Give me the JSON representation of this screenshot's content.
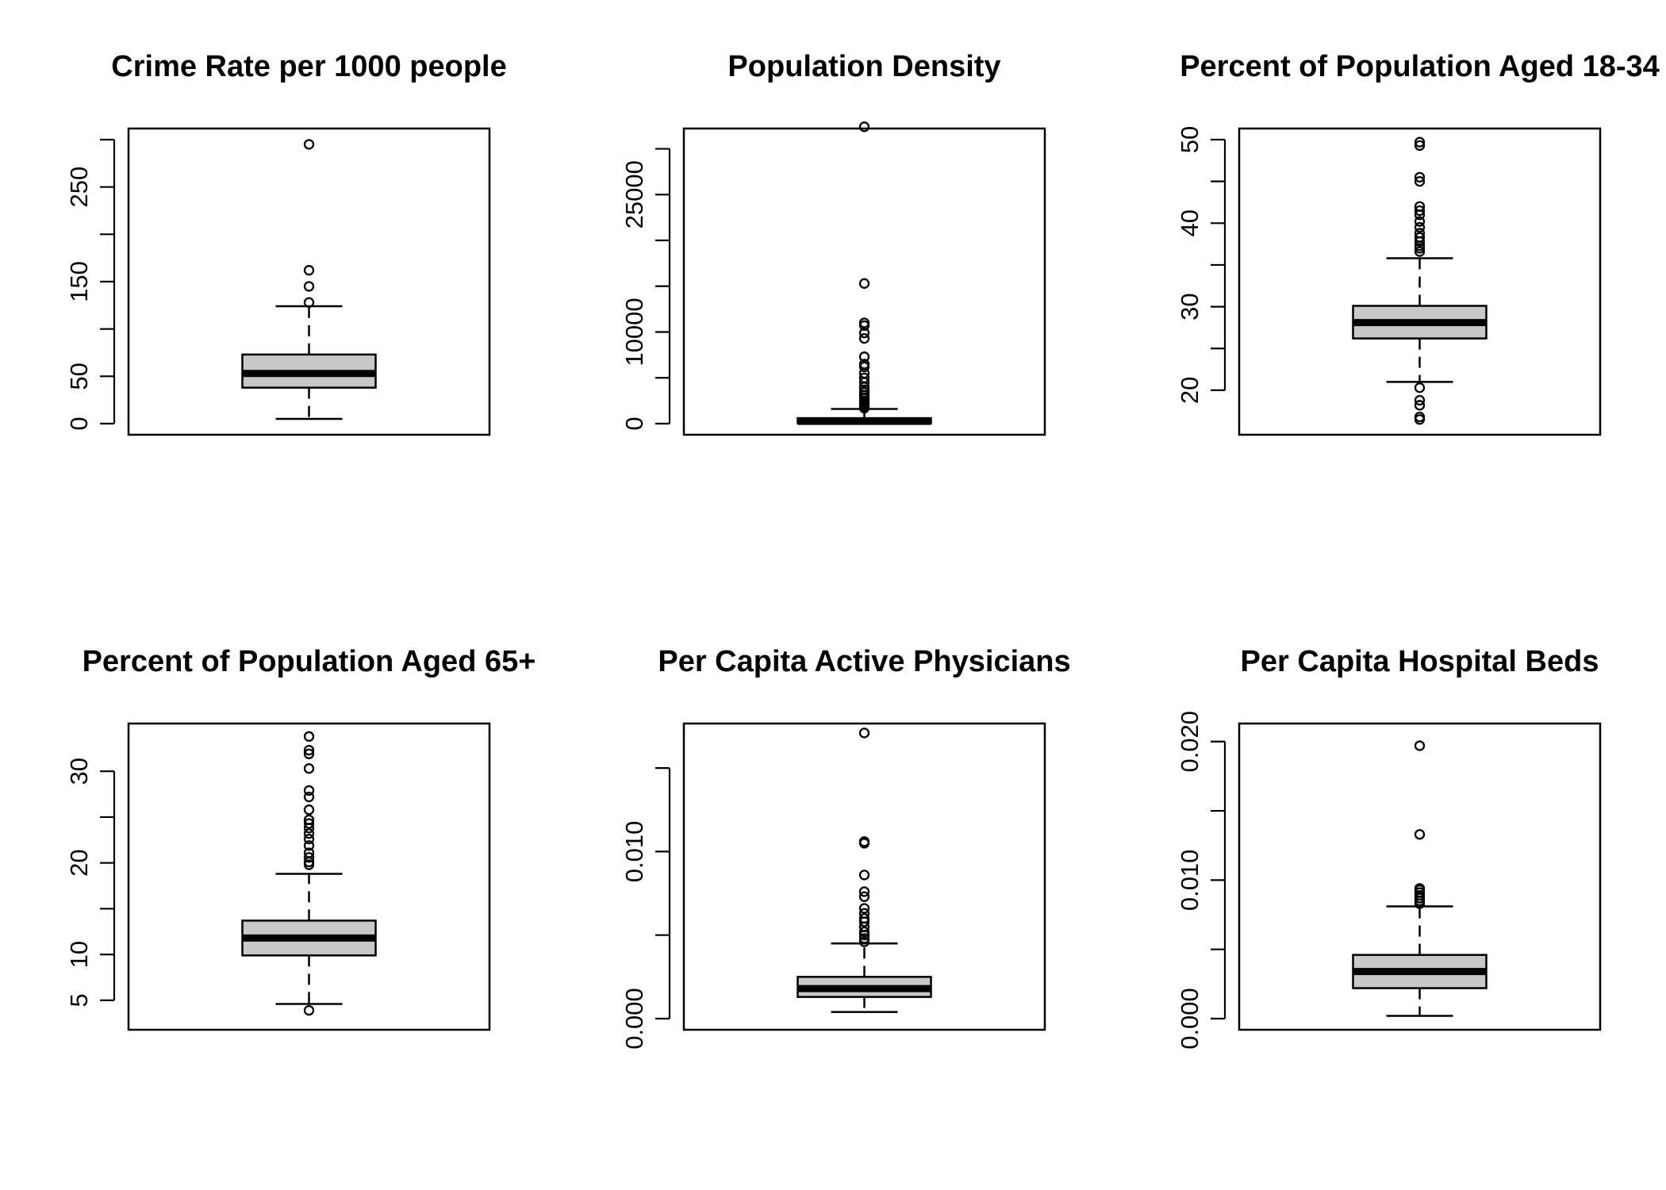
{
  "chart_data": [
    {
      "type": "box",
      "title": "Crime Rate per 1000 people",
      "ylim": [
        0,
        300
      ],
      "yticks": [
        0,
        50,
        100,
        150,
        200,
        250,
        300
      ],
      "ytick_labels": [
        "0",
        "50",
        "",
        "150",
        "",
        "250",
        ""
      ],
      "box": {
        "whisker_low": 5,
        "q1": 38,
        "median": 53,
        "q3": 73,
        "whisker_high": 124
      },
      "outliers": [
        128,
        145,
        162,
        295
      ]
    },
    {
      "type": "box",
      "title": "Population Density",
      "ylim": [
        0,
        31000
      ],
      "yticks": [
        0,
        5000,
        10000,
        15000,
        20000,
        25000,
        30000
      ],
      "ytick_labels": [
        "0",
        "",
        "10000",
        "",
        "",
        "25000",
        ""
      ],
      "box": {
        "whisker_low": 10,
        "q1": 60,
        "median": 250,
        "q3": 600,
        "whisker_high": 1600
      },
      "outliers": [
        1700,
        1900,
        2100,
        2300,
        2500,
        2800,
        3100,
        3400,
        3700,
        4000,
        4500,
        5000,
        5500,
        6200,
        6500,
        7300,
        9300,
        9900,
        10700,
        11000,
        15300,
        32400
      ]
    },
    {
      "type": "box",
      "title": "Percent of Population Aged 18-34",
      "ylim": [
        16,
        50
      ],
      "yticks": [
        20,
        25,
        30,
        35,
        40,
        45,
        50
      ],
      "ytick_labels": [
        "20",
        "",
        "30",
        "",
        "40",
        "",
        "50"
      ],
      "box": {
        "whisker_low": 21,
        "q1": 26.2,
        "median": 28.1,
        "q3": 30.1,
        "whisker_high": 35.8
      },
      "outliers": [
        16.5,
        16.8,
        18.2,
        18.8,
        20.3,
        36.6,
        37,
        37.3,
        37.8,
        38.3,
        38.8,
        39.5,
        40.2,
        41,
        41.5,
        42,
        45,
        45.5,
        49.3,
        49.7
      ]
    },
    {
      "type": "box",
      "title": "Percent of Population Aged 65+",
      "ylim": [
        3,
        34
      ],
      "yticks": [
        5,
        10,
        15,
        20,
        25,
        30
      ],
      "ytick_labels": [
        "5",
        "10",
        "",
        "20",
        "",
        "30"
      ],
      "box": {
        "whisker_low": 4.6,
        "q1": 9.9,
        "median": 11.8,
        "q3": 13.7,
        "whisker_high": 18.8
      },
      "outliers": [
        3.9,
        19.8,
        20.1,
        20.6,
        21.1,
        21.9,
        22.6,
        23.2,
        23.8,
        24.3,
        24.7,
        25.8,
        27.2,
        27.9,
        30.3,
        31.9,
        32.3,
        33.8
      ]
    },
    {
      "type": "box",
      "title": "Per Capita Active Physicians",
      "ylim": [
        0,
        0.017
      ],
      "yticks": [
        0,
        0.005,
        0.01,
        0.015
      ],
      "ytick_labels": [
        "0.000",
        "",
        "0.010",
        ""
      ],
      "box": {
        "whisker_low": 0.0004,
        "q1": 0.0013,
        "median": 0.0018,
        "q3": 0.0025,
        "whisker_high": 0.0045
      },
      "outliers": [
        0.0046,
        0.0048,
        0.005,
        0.0052,
        0.0055,
        0.0058,
        0.006,
        0.0063,
        0.0066,
        0.0073,
        0.0076,
        0.0086,
        0.0105,
        0.0106,
        0.0171
      ]
    },
    {
      "type": "box",
      "title": "Per Capita Hospital Beds",
      "ylim": [
        0,
        0.0205
      ],
      "yticks": [
        0,
        0.005,
        0.01,
        0.015,
        0.02
      ],
      "ytick_labels": [
        "0.000",
        "",
        "0.010",
        "",
        "0.020"
      ],
      "box": {
        "whisker_low": 0.0002,
        "q1": 0.0022,
        "median": 0.0034,
        "q3": 0.0046,
        "whisker_high": 0.0081
      },
      "outliers": [
        0.0083,
        0.0085,
        0.0087,
        0.0089,
        0.0091,
        0.0093,
        0.0094,
        0.0133,
        0.0197
      ]
    }
  ]
}
